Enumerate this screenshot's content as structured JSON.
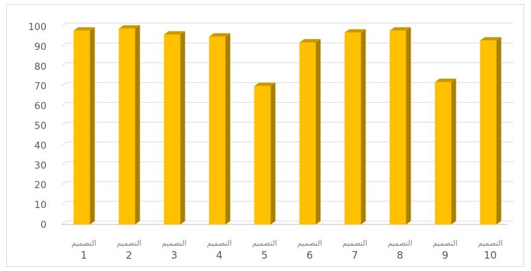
{
  "chart_data": {
    "type": "bar",
    "categories": [
      "1",
      "2",
      "3",
      "4",
      "5",
      "6",
      "7",
      "8",
      "9",
      "10"
    ],
    "category_prefix": "التصميم",
    "values": [
      98,
      99,
      96,
      95,
      70,
      92,
      97,
      98,
      72,
      93
    ],
    "yticks": [
      "0",
      "10",
      "20",
      "30",
      "40",
      "50",
      "60",
      "70",
      "80",
      "90",
      "100"
    ],
    "ylim": [
      0,
      100
    ],
    "grid": true,
    "legend": "none",
    "title": "",
    "xlabel": "",
    "ylabel": "",
    "colors": {
      "bar_front": "#FFC000",
      "bar_side": "#A88000",
      "bar_top": "#C99A00",
      "grid": "#d9d9d9",
      "axis": "#bfbfbf"
    }
  }
}
